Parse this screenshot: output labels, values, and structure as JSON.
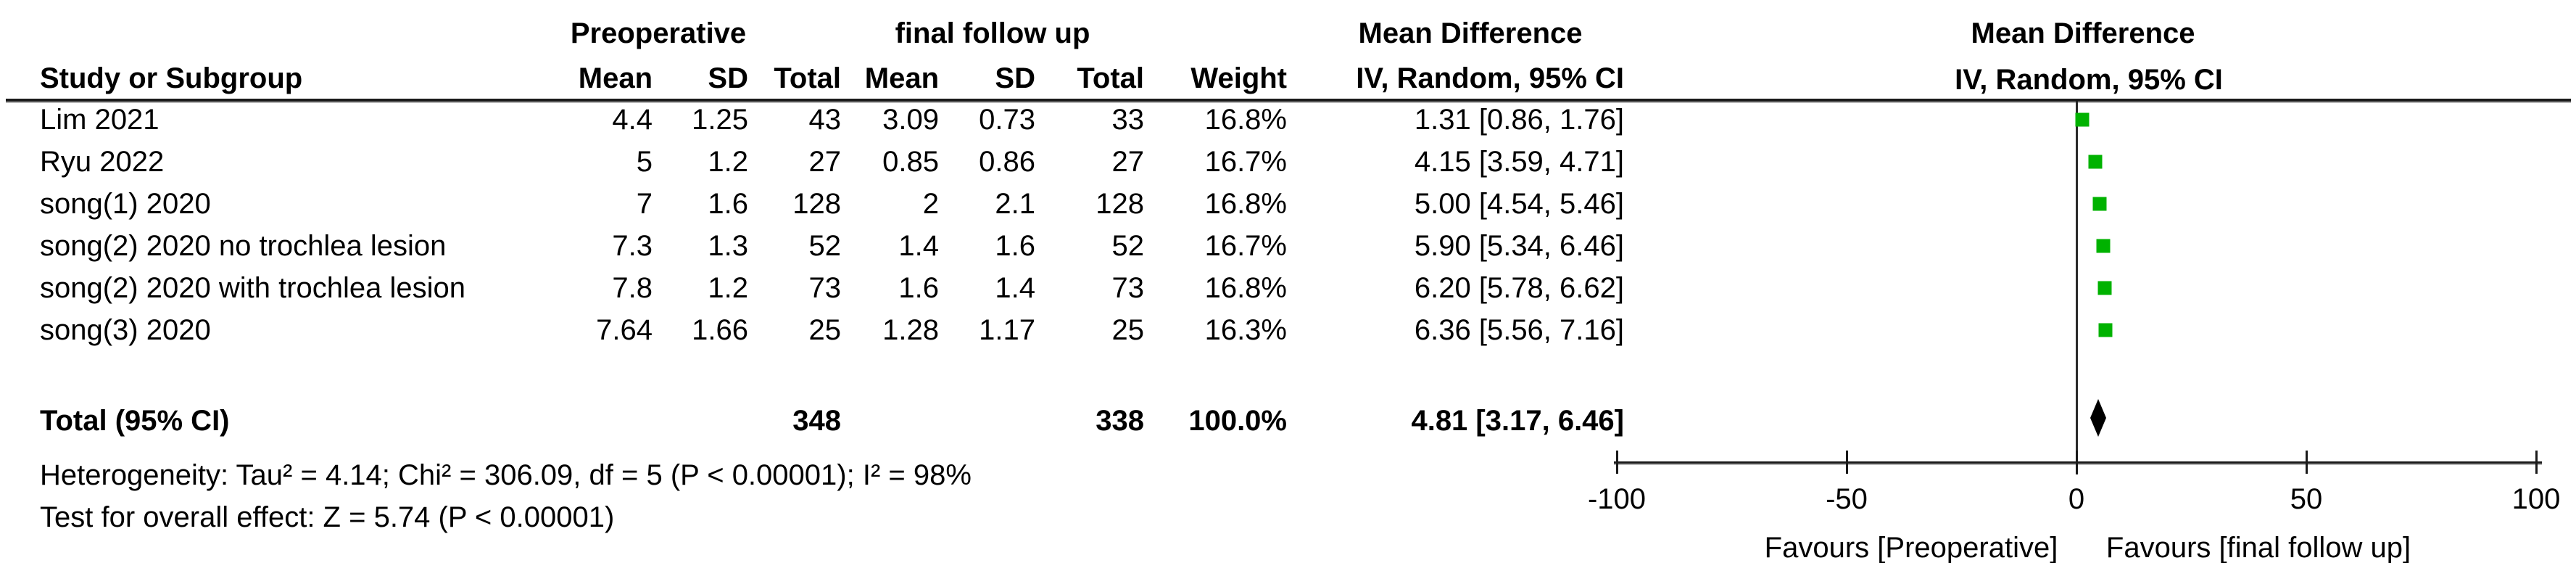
{
  "header": {
    "group1": "Preoperative",
    "group2": "final follow up",
    "md_title_left": "Mean Difference",
    "md_title_right": "Mean Difference",
    "md_subtitle_left": "IV, Random, 95% CI",
    "md_subtitle_right": "IV, Random, 95% CI",
    "col_study": "Study or Subgroup",
    "col_mean1": "Mean",
    "col_sd1": "SD",
    "col_total1": "Total",
    "col_mean2": "Mean",
    "col_sd2": "SD",
    "col_total2": "Total",
    "col_weight": "Weight"
  },
  "rows": [
    {
      "study": "Lim 2021",
      "mean1": "4.4",
      "sd1": "1.25",
      "total1": "43",
      "mean2": "3.09",
      "sd2": "0.73",
      "total2": "33",
      "weight": "16.8%",
      "ci": "1.31 [0.86, 1.76]",
      "md": 1.31,
      "lo": 0.86,
      "hi": 1.76
    },
    {
      "study": "Ryu 2022",
      "mean1": "5",
      "sd1": "1.2",
      "total1": "27",
      "mean2": "0.85",
      "sd2": "0.86",
      "total2": "27",
      "weight": "16.7%",
      "ci": "4.15 [3.59, 4.71]",
      "md": 4.15,
      "lo": 3.59,
      "hi": 4.71
    },
    {
      "study": "song(1) 2020",
      "mean1": "7",
      "sd1": "1.6",
      "total1": "128",
      "mean2": "2",
      "sd2": "2.1",
      "total2": "128",
      "weight": "16.8%",
      "ci": "5.00 [4.54, 5.46]",
      "md": 5.0,
      "lo": 4.54,
      "hi": 5.46
    },
    {
      "study": "song(2) 2020 no trochlea lesion",
      "mean1": "7.3",
      "sd1": "1.3",
      "total1": "52",
      "mean2": "1.4",
      "sd2": "1.6",
      "total2": "52",
      "weight": "16.7%",
      "ci": "5.90 [5.34, 6.46]",
      "md": 5.9,
      "lo": 5.34,
      "hi": 6.46
    },
    {
      "study": "song(2) 2020 with trochlea lesion",
      "mean1": "7.8",
      "sd1": "1.2",
      "total1": "73",
      "mean2": "1.6",
      "sd2": "1.4",
      "total2": "73",
      "weight": "16.8%",
      "ci": "6.20 [5.78, 6.62]",
      "md": 6.2,
      "lo": 5.78,
      "hi": 6.62
    },
    {
      "study": "song(3) 2020",
      "mean1": "7.64",
      "sd1": "1.66",
      "total1": "25",
      "mean2": "1.28",
      "sd2": "1.17",
      "total2": "25",
      "weight": "16.3%",
      "ci": "6.36 [5.56, 7.16]",
      "md": 6.36,
      "lo": 5.56,
      "hi": 7.16
    }
  ],
  "total": {
    "label": "Total (95% CI)",
    "total1": "348",
    "total2": "338",
    "weight": "100.0%",
    "ci": "4.81 [3.17, 6.46]",
    "md": 4.81,
    "lo": 3.17,
    "hi": 6.46
  },
  "footer": {
    "heterogeneity": "Heterogeneity: Tau² = 4.14; Chi² = 306.09, df = 5 (P < 0.00001); I² = 98%",
    "overall_effect": "Test for overall effect: Z = 5.74 (P < 0.00001)"
  },
  "axis": {
    "tick_labels": [
      "-100",
      "-50",
      "0",
      "50",
      "100"
    ],
    "tick_values": [
      -100,
      -50,
      0,
      50,
      100
    ],
    "favours_left": "Favours [Preoperative]",
    "favours_right": "Favours [final follow up]"
  },
  "colors": {
    "marker_green": "#00b200",
    "diamond_black": "#000000",
    "line_dark": "#1a1a1a"
  },
  "chart_data": {
    "type": "forest",
    "title": "Mean Difference",
    "effect_measure": "IV, Random, 95% CI",
    "studies": [
      "Lim 2021",
      "Ryu 2022",
      "song(1) 2020",
      "song(2) 2020 no trochlea lesion",
      "song(2) 2020 with trochlea lesion",
      "song(3) 2020"
    ],
    "mean_difference": [
      1.31,
      4.15,
      5.0,
      5.9,
      6.2,
      6.36
    ],
    "ci_low": [
      0.86,
      3.59,
      4.54,
      5.34,
      5.78,
      5.56
    ],
    "ci_high": [
      1.76,
      4.71,
      5.46,
      6.46,
      6.62,
      7.16
    ],
    "weights_pct": [
      16.8,
      16.7,
      16.8,
      16.7,
      16.8,
      16.3
    ],
    "group1": {
      "name": "Preoperative",
      "means": [
        4.4,
        5,
        7,
        7.3,
        7.8,
        7.64
      ],
      "sds": [
        1.25,
        1.2,
        1.6,
        1.3,
        1.2,
        1.66
      ],
      "totals": [
        43,
        27,
        128,
        52,
        73,
        25
      ],
      "grand_total": 348
    },
    "group2": {
      "name": "final follow up",
      "means": [
        3.09,
        0.85,
        2,
        1.4,
        1.6,
        1.28
      ],
      "sds": [
        0.73,
        0.86,
        2.1,
        1.6,
        1.4,
        1.17
      ],
      "totals": [
        33,
        27,
        128,
        52,
        73,
        25
      ],
      "grand_total": 338
    },
    "total_effect": {
      "md": 4.81,
      "ci_low": 3.17,
      "ci_high": 6.46,
      "weight_pct": 100.0
    },
    "heterogeneity": {
      "tau2": 4.14,
      "chi2": 306.09,
      "df": 5,
      "p": "< 0.00001",
      "i2_pct": 98
    },
    "overall_effect": {
      "z": 5.74,
      "p": "< 0.00001"
    },
    "xlim": [
      -100,
      100
    ],
    "x_ticks": [
      -100,
      -50,
      0,
      50,
      100
    ],
    "xlabel_left": "Favours [Preoperative]",
    "xlabel_right": "Favours [final follow up]"
  }
}
